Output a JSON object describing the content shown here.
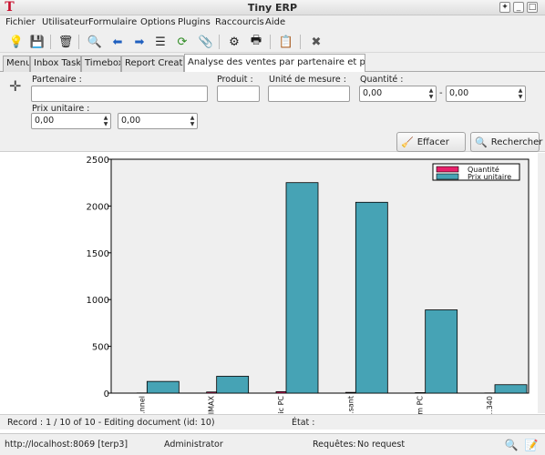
{
  "window": {
    "title": "Tiny ERP",
    "app_icon_glyph": "T"
  },
  "menu": [
    "Fichier",
    "Utilisateur",
    "Formulaire",
    "Options",
    "Plugins",
    "Raccourcis",
    "Aide"
  ],
  "toolbar": [
    {
      "icon": "new-icon",
      "glyph": "💡"
    },
    {
      "icon": "save-icon",
      "glyph": "💾"
    },
    {
      "icon": "delete-icon",
      "glyph": "🗑"
    },
    {
      "icon": "search-icon",
      "glyph": "🔍"
    },
    {
      "icon": "previous-icon",
      "glyph": "⬅"
    },
    {
      "icon": "next-icon",
      "glyph": "➡"
    },
    {
      "icon": "list-view-icon",
      "glyph": "☰"
    },
    {
      "icon": "reload-icon",
      "glyph": "⟳"
    },
    {
      "icon": "attachment-icon",
      "glyph": "📎"
    },
    {
      "icon": "action-icon",
      "glyph": "⚙"
    },
    {
      "icon": "print-icon",
      "glyph": "🖶"
    },
    {
      "icon": "paste-icon",
      "glyph": "📋"
    },
    {
      "icon": "close-icon",
      "glyph": "✖"
    }
  ],
  "tabs": [
    "Menu",
    "Inbox Tasks",
    "Timebox",
    "Report Creator",
    "Analyse des ventes par partenaire et produ"
  ],
  "form": {
    "partenaire_label": "Partenaire :",
    "produit_label": "Produit :",
    "unite_label": "Unité de mesure :",
    "quantite_label": "Quantité :",
    "quantite_min": "0,00",
    "quantite_max": "0,00",
    "range_dash": "-",
    "prix_label": "Prix unitaire :",
    "prix_min": "0,00",
    "prix_max": "0,00",
    "effacer": "Effacer",
    "rechercher": "Rechercher"
  },
  "chart_data": {
    "type": "bar",
    "categories": [
      "...nnel",
      "...IMAX",
      "...ic PC",
      "...sant",
      "...m PC",
      "...340"
    ],
    "series": [
      {
        "name": "Quantité",
        "color": "#e8206a",
        "values": [
          2,
          12,
          16,
          8,
          5,
          2
        ]
      },
      {
        "name": "Prix unitaire",
        "color": "#46a3b5",
        "values": [
          125,
          180,
          2250,
          2040,
          890,
          90
        ]
      }
    ],
    "ylim": [
      0,
      2500
    ],
    "yticks": [
      0,
      500,
      1000,
      1500,
      2000,
      2500
    ],
    "legend": "top-right",
    "grid": false
  },
  "record_bar": {
    "record": "Record : 1 / 10 of 10 - Editing document (id: 10)",
    "etat": "État :"
  },
  "status_bar": {
    "server": "http://localhost:8069 [terp3]",
    "user": "Administrator",
    "requests_label": "Requêtes:",
    "requests_value": "No request"
  }
}
